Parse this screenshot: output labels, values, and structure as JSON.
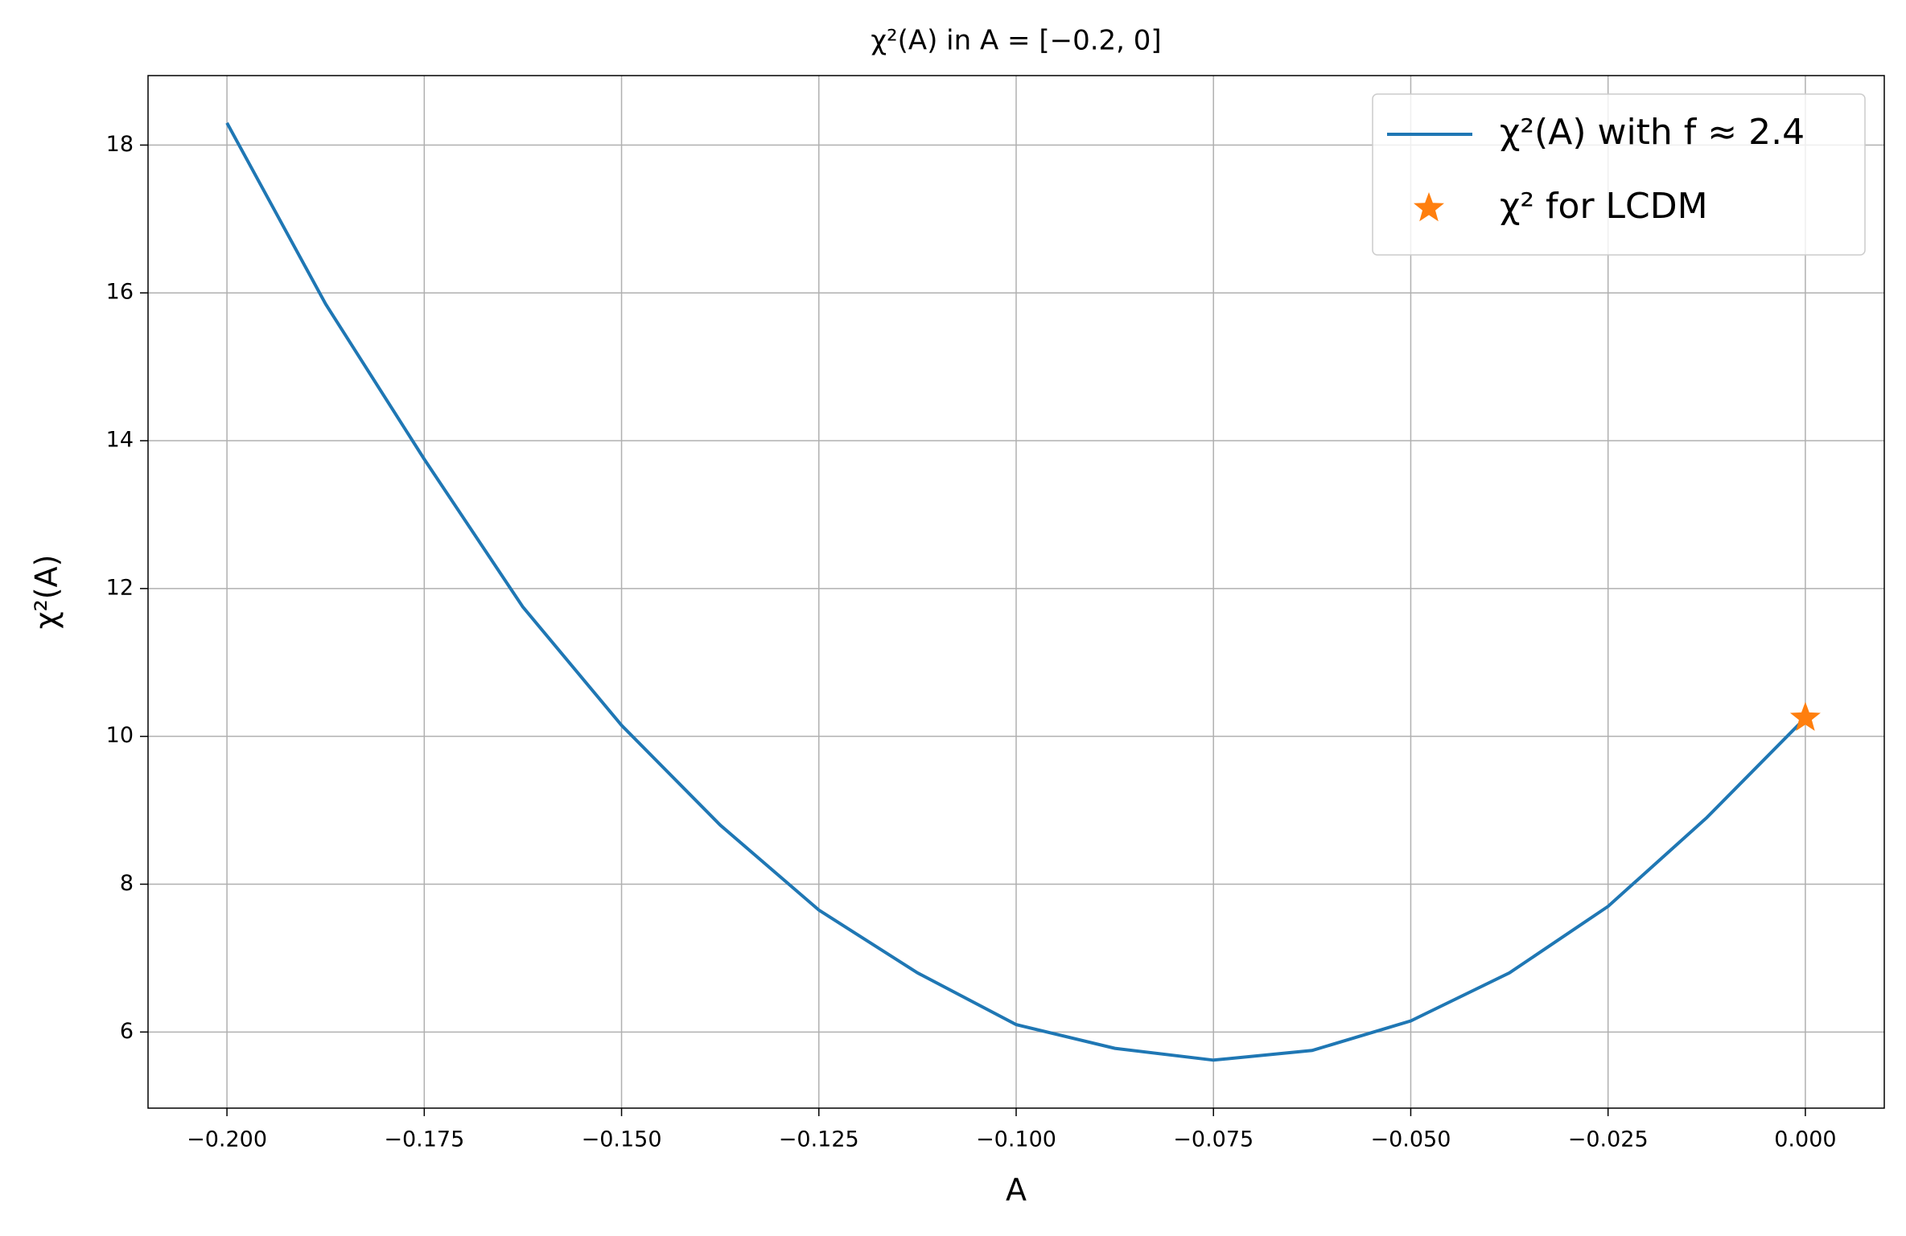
{
  "chart_data": {
    "type": "line",
    "title": "χ²(A) in A = [−0.2, 0]",
    "xlabel": "A",
    "ylabel": "χ²(A)",
    "x": [
      -0.2,
      -0.1875,
      -0.175,
      -0.1625,
      -0.15,
      -0.1375,
      -0.125,
      -0.1125,
      -0.1,
      -0.0875,
      -0.075,
      -0.0625,
      -0.05,
      -0.0375,
      -0.025,
      -0.0125,
      0.0
    ],
    "series": [
      {
        "name": "χ²(A) with f ≈ 2.4",
        "color": "#1f77b4",
        "values": [
          18.3,
          15.85,
          13.75,
          11.75,
          10.15,
          8.8,
          7.65,
          6.8,
          6.1,
          5.78,
          5.62,
          5.75,
          6.15,
          6.8,
          7.7,
          8.9,
          10.25
        ]
      },
      {
        "name": "χ² for LCDM",
        "color": "#ff7f0e",
        "marker": "star",
        "x": [
          0.0
        ],
        "values": [
          10.25
        ]
      }
    ],
    "xlim": [
      -0.21,
      0.01
    ],
    "ylim": [
      4.97,
      18.94
    ],
    "xticks": [
      {
        "value": -0.2,
        "label": "−0.200"
      },
      {
        "value": -0.175,
        "label": "−0.175"
      },
      {
        "value": -0.15,
        "label": "−0.150"
      },
      {
        "value": -0.125,
        "label": "−0.125"
      },
      {
        "value": -0.1,
        "label": "−0.100"
      },
      {
        "value": -0.075,
        "label": "−0.075"
      },
      {
        "value": -0.05,
        "label": "−0.050"
      },
      {
        "value": -0.025,
        "label": "−0.025"
      },
      {
        "value": 0.0,
        "label": "0.000"
      }
    ],
    "yticks": [
      6,
      8,
      10,
      12,
      14,
      16,
      18
    ],
    "grid": true,
    "legend": "upper-right"
  }
}
